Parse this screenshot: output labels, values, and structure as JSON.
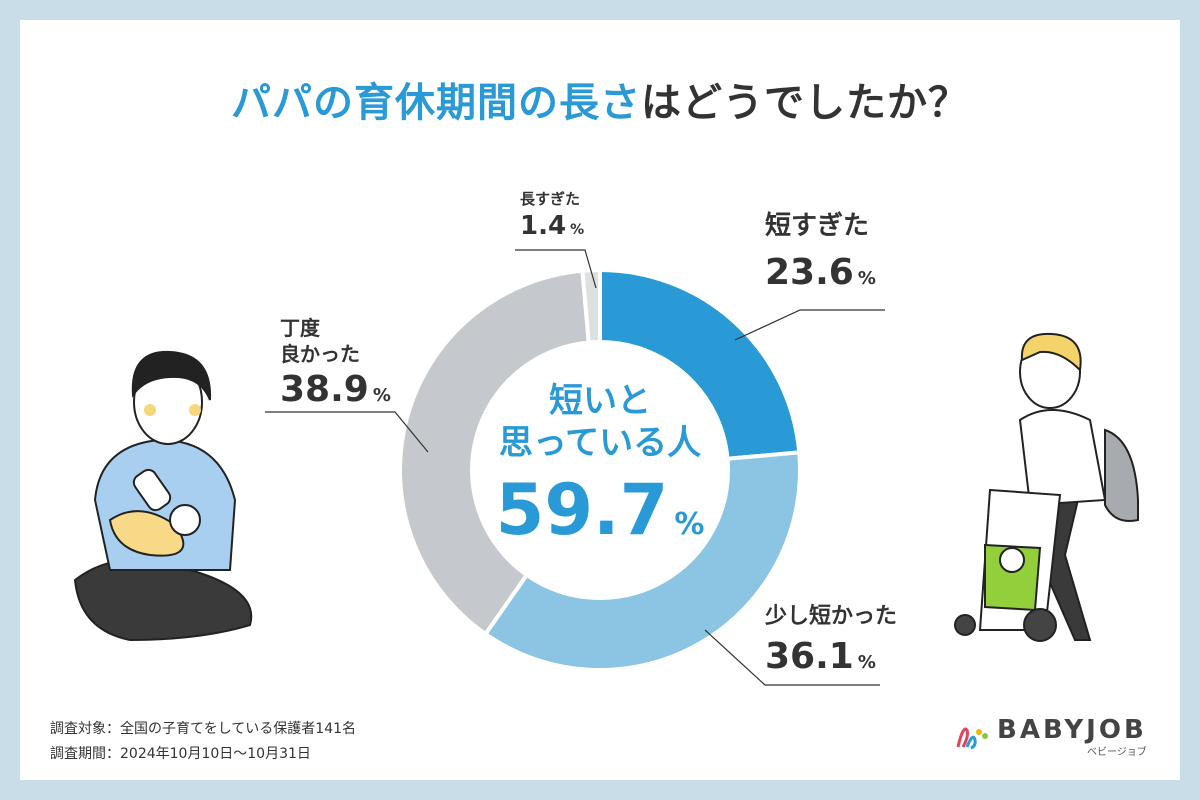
{
  "title": {
    "highlight": "パパの育休期間の長さ",
    "rest": "はどうでしたか？"
  },
  "center_label": {
    "line1": "短いと",
    "line2": "思っている人",
    "value": "59.7",
    "unit": "%"
  },
  "chart_data": {
    "type": "pie",
    "donut": true,
    "slices": [
      {
        "label": "短すぎた",
        "value": 23.6,
        "color": "#2a9ad6"
      },
      {
        "label": "少し短かった",
        "value": 36.1,
        "color": "#8cc4e4"
      },
      {
        "label": "丁度良かった",
        "value": 38.9,
        "color": "#c5c8cc"
      },
      {
        "label": "長すぎた",
        "value": 1.4,
        "color": "#dedfe1"
      }
    ]
  },
  "labels": {
    "short_too": {
      "name": "短すぎた",
      "pct": "23.6",
      "unit": "%"
    },
    "short_bit": {
      "name": "少し短かった",
      "pct": "36.1",
      "unit": "%"
    },
    "just_right": {
      "name1": "丁度",
      "name2": "良かった",
      "pct": "38.9",
      "unit": "%"
    },
    "long_too": {
      "name": "長すぎた",
      "pct": "1.4",
      "unit": "%"
    }
  },
  "footnotes": {
    "target": "調査対象：全国の子育てをしている保護者141名",
    "period": "調査期間：2024年10月10日〜10月31日"
  },
  "logo": {
    "word": "BABYJOB",
    "kana": "ベビージョブ"
  }
}
